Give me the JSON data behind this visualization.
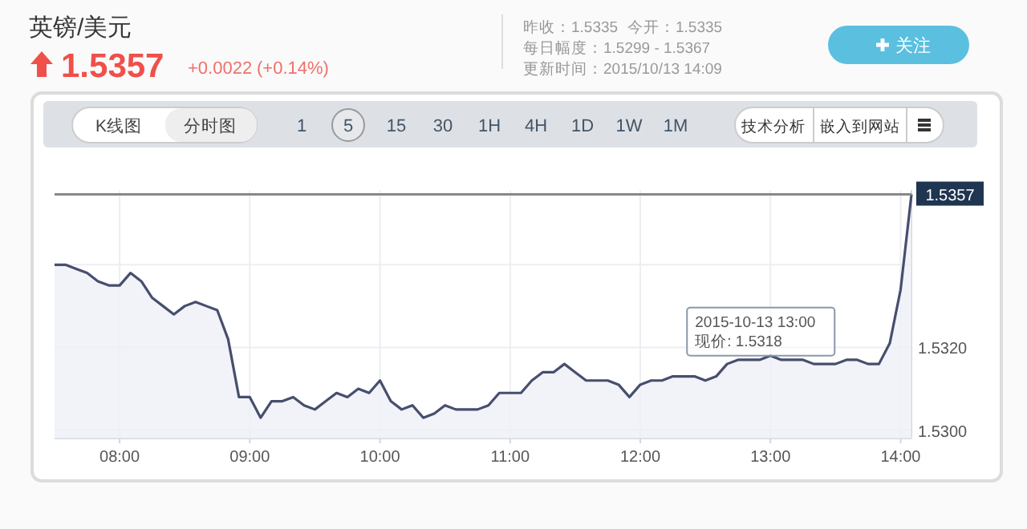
{
  "chart_data": {
    "type": "area",
    "title": "英镑/美元",
    "subtitle": "1.5357",
    "x": [
      "2015-10-13T07:30",
      "2015-10-13T07:35",
      "2015-10-13T07:40",
      "2015-10-13T07:45",
      "2015-10-13T07:50",
      "2015-10-13T07:55",
      "2015-10-13T08:00",
      "2015-10-13T08:05",
      "2015-10-13T08:10",
      "2015-10-13T08:15",
      "2015-10-13T08:20",
      "2015-10-13T08:25",
      "2015-10-13T08:30",
      "2015-10-13T08:35",
      "2015-10-13T08:40",
      "2015-10-13T08:45",
      "2015-10-13T08:50",
      "2015-10-13T08:55",
      "2015-10-13T09:00",
      "2015-10-13T09:05",
      "2015-10-13T09:10",
      "2015-10-13T09:15",
      "2015-10-13T09:20",
      "2015-10-13T09:25",
      "2015-10-13T09:30",
      "2015-10-13T09:35",
      "2015-10-13T09:40",
      "2015-10-13T09:45",
      "2015-10-13T09:50",
      "2015-10-13T09:55",
      "2015-10-13T10:00",
      "2015-10-13T10:05",
      "2015-10-13T10:10",
      "2015-10-13T10:15",
      "2015-10-13T10:20",
      "2015-10-13T10:25",
      "2015-10-13T10:30",
      "2015-10-13T10:35",
      "2015-10-13T10:40",
      "2015-10-13T10:45",
      "2015-10-13T10:50",
      "2015-10-13T10:55",
      "2015-10-13T11:00",
      "2015-10-13T11:05",
      "2015-10-13T11:10",
      "2015-10-13T11:15",
      "2015-10-13T11:20",
      "2015-10-13T11:25",
      "2015-10-13T11:30",
      "2015-10-13T11:35",
      "2015-10-13T11:40",
      "2015-10-13T11:45",
      "2015-10-13T11:50",
      "2015-10-13T11:55",
      "2015-10-13T12:00",
      "2015-10-13T12:05",
      "2015-10-13T12:10",
      "2015-10-13T12:15",
      "2015-10-13T12:20",
      "2015-10-13T12:25",
      "2015-10-13T12:30",
      "2015-10-13T12:35",
      "2015-10-13T12:40",
      "2015-10-13T12:45",
      "2015-10-13T12:50",
      "2015-10-13T12:55",
      "2015-10-13T13:00",
      "2015-10-13T13:05",
      "2015-10-13T13:10",
      "2015-10-13T13:15",
      "2015-10-13T13:20",
      "2015-10-13T13:25",
      "2015-10-13T13:30",
      "2015-10-13T13:35",
      "2015-10-13T13:40",
      "2015-10-13T13:45",
      "2015-10-13T13:50",
      "2015-10-13T13:55",
      "2015-10-13T14:00",
      "2015-10-13T14:05"
    ],
    "series": [
      {
        "color": "#474e6e",
        "values": [
          1.534,
          1.534,
          1.5339,
          1.5338,
          1.5336,
          1.5335,
          1.5335,
          1.5338,
          1.5336,
          1.5332,
          1.533,
          1.5328,
          1.533,
          1.5331,
          1.533,
          1.5329,
          1.5322,
          1.5308,
          1.5308,
          1.5303,
          1.5307,
          1.5307,
          1.5308,
          1.5306,
          1.5305,
          1.5307,
          1.5309,
          1.5308,
          1.531,
          1.5309,
          1.5312,
          1.5307,
          1.5305,
          1.5306,
          1.5303,
          1.5304,
          1.5306,
          1.5305,
          1.5305,
          1.5305,
          1.5306,
          1.5309,
          1.5309,
          1.5309,
          1.5312,
          1.5314,
          1.5314,
          1.5316,
          1.5314,
          1.5312,
          1.5312,
          1.5312,
          1.5311,
          1.5308,
          1.5311,
          1.5312,
          1.5312,
          1.5313,
          1.5313,
          1.5313,
          1.5312,
          1.5313,
          1.5316,
          1.5317,
          1.5317,
          1.5317,
          1.5318,
          1.5317,
          1.5317,
          1.5317,
          1.5316,
          1.5316,
          1.5316,
          1.5317,
          1.5317,
          1.5316,
          1.5316,
          1.5321,
          1.5334,
          1.5357
        ]
      }
    ],
    "xlim": [
      "2015-10-13T07:30",
      "2015-10-13T14:05"
    ],
    "xticks": [
      {
        "value": "2015-10-13T08:00",
        "label": "08:00"
      },
      {
        "value": "2015-10-13T09:00",
        "label": "09:00"
      },
      {
        "value": "2015-10-13T10:00",
        "label": "10:00"
      },
      {
        "value": "2015-10-13T11:00",
        "label": "11:00"
      },
      {
        "value": "2015-10-13T12:00",
        "label": "12:00"
      },
      {
        "value": "2015-10-13T13:00",
        "label": "13:00"
      },
      {
        "value": "2015-10-13T14:00",
        "label": "14:00"
      }
    ],
    "ylim": [
      1.5298,
      1.5358
    ],
    "yticks": [
      {
        "value": 1.53,
        "label": "1.5300"
      },
      {
        "value": 1.532,
        "label": "1.5320"
      },
      {
        "value": 1.534,
        "label": null
      }
    ],
    "grid": true,
    "ref_lines": [
      {
        "axis": "y",
        "value": 1.5357,
        "label": "1.5357",
        "color": "#888888"
      }
    ],
    "annotations": [
      "+0.0022",
      "(+0.14%)",
      "昨收：1.5335",
      "今开：1.5335",
      "每日幅度：1.5299 - 1.5367",
      "更新时间：2015/10/13 14:09",
      "关注",
      "K线图",
      "分时图",
      "15",
      "30",
      "1H",
      "4H",
      "1D",
      "1W",
      "1M",
      "1",
      "5",
      "技术分析",
      "嵌入到网站",
      {
        "text": "2015-10-13 13:00",
        "x": "2015-10-13T13:00",
        "y": 1.5318
      },
      {
        "text": "现价:  1.5318",
        "x": "2015-10-13T13:00",
        "y": 1.5318
      }
    ]
  }
}
